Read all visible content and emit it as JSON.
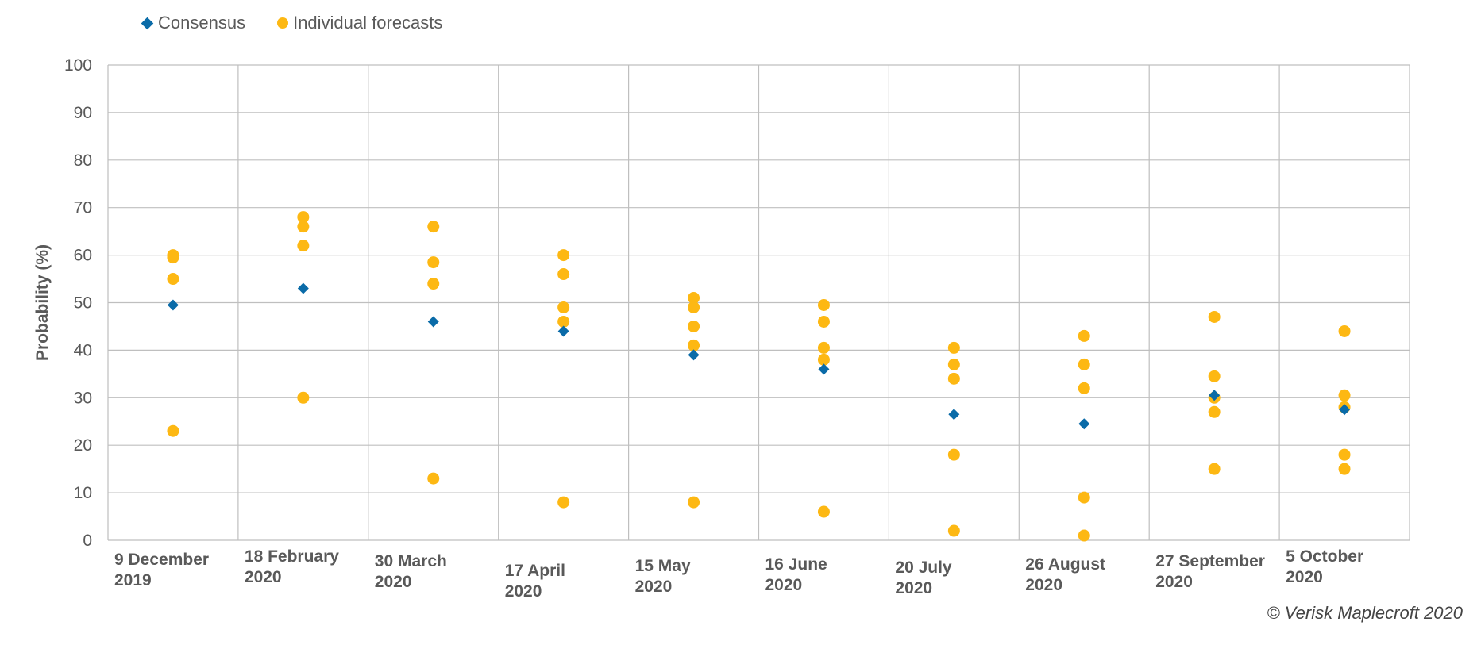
{
  "legend": {
    "consensus_label": "Consensus",
    "individual_label": "Individual forecasts"
  },
  "credit": "© Verisk Maplecroft 2020",
  "colors": {
    "consensus": "#0a6ba8",
    "individual": "#fdb813",
    "grid": "#bfbfbf"
  },
  "chart_data": {
    "type": "scatter",
    "title": "",
    "ylabel": "Probability (%)",
    "xlabel": "",
    "ylim": [
      0,
      100
    ],
    "yticks": [
      0,
      10,
      20,
      30,
      40,
      50,
      60,
      70,
      80,
      90,
      100
    ],
    "grid": true,
    "legend_position": "top-left",
    "categories": [
      [
        "9 December",
        "2019"
      ],
      [
        "18 February",
        "2020"
      ],
      [
        "30 March",
        "2020"
      ],
      [
        "17 April",
        "2020"
      ],
      [
        "15 May",
        "2020"
      ],
      [
        "16  June",
        "2020"
      ],
      [
        "20  July",
        "2020"
      ],
      [
        "26 August",
        "2020"
      ],
      [
        "27 September",
        "2020"
      ],
      [
        "5 October",
        "2020"
      ]
    ],
    "series": [
      {
        "name": "Consensus",
        "marker": "diamond",
        "values": [
          49.5,
          53,
          46,
          44,
          39,
          36,
          26.5,
          24.5,
          30.5,
          27.5
        ]
      },
      {
        "name": "Individual forecasts",
        "marker": "circle",
        "values": [
          [
            60,
            59.5,
            55,
            23
          ],
          [
            68,
            66,
            62,
            30
          ],
          [
            66,
            58.5,
            54,
            13
          ],
          [
            60,
            56,
            49,
            46,
            8
          ],
          [
            51,
            49,
            45,
            41,
            8
          ],
          [
            49.5,
            46,
            40.5,
            38,
            6
          ],
          [
            40.5,
            37,
            34,
            18,
            2
          ],
          [
            43,
            37,
            32,
            9,
            1
          ],
          [
            47,
            34.5,
            30,
            27,
            15
          ],
          [
            44,
            30.5,
            28,
            18,
            15
          ]
        ]
      }
    ]
  }
}
